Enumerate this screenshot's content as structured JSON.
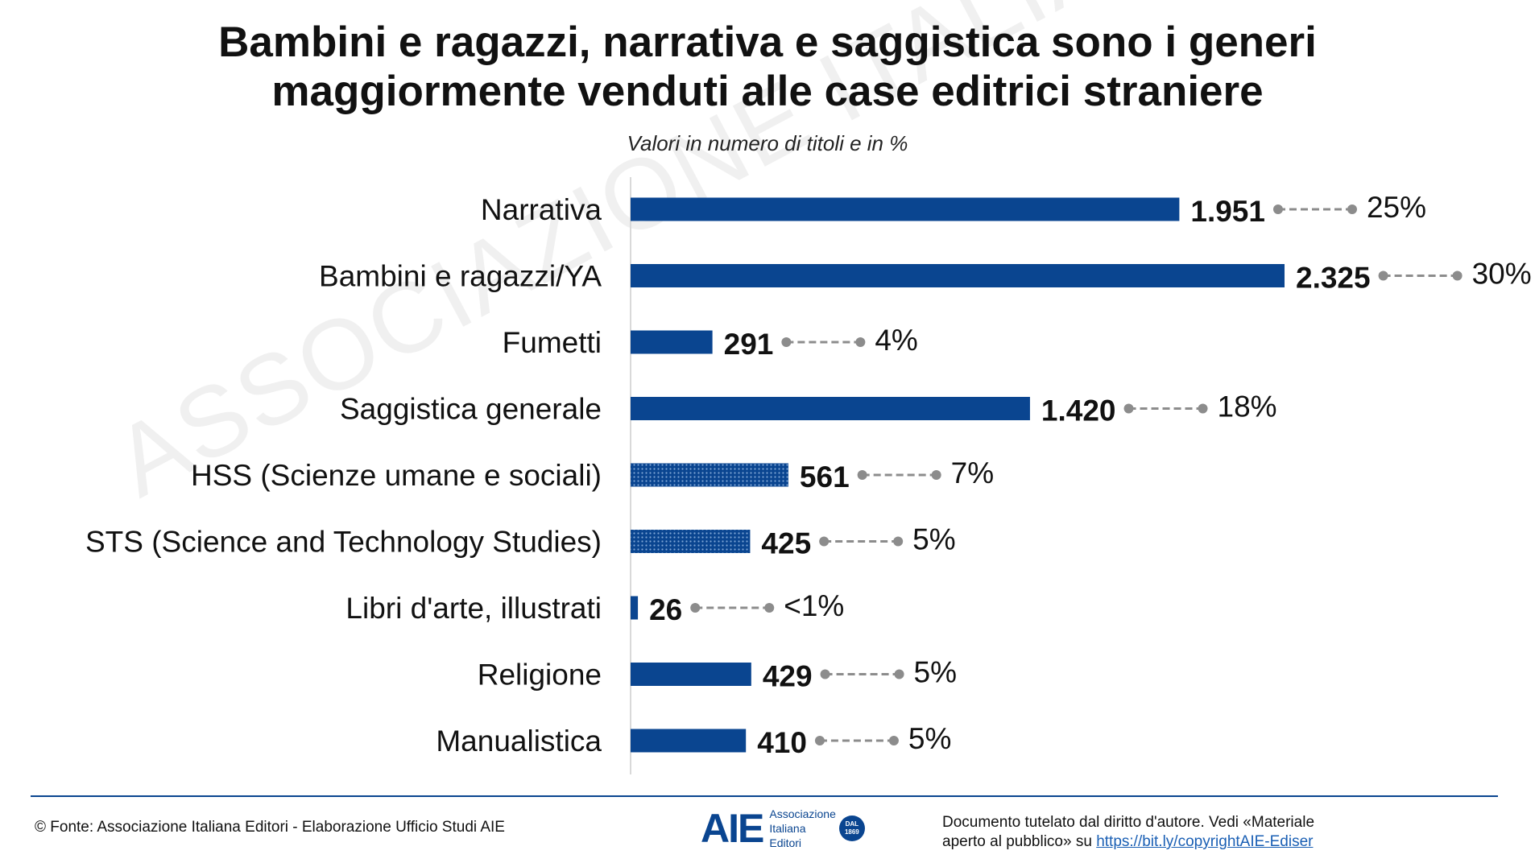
{
  "title_line1": "Bambini e ragazzi, narrativa e saggistica sono i generi",
  "title_line2": "maggiormente venduti alle case editrici straniere",
  "subtitle": "Valori in numero di titoli e in %",
  "watermark": "ASSOCIAZIONE ITALIANA EDITORI",
  "colors": {
    "bar": "#0a4590",
    "connector": "#8c8c8c"
  },
  "chart_data": {
    "type": "bar",
    "orientation": "horizontal",
    "categories": [
      "Narrativa",
      "Bambini e ragazzi/YA",
      "Fumetti",
      "Saggistica generale",
      "HSS (Scienze umane e sociali)",
      "STS (Science and Technology Studies)",
      "Libri d'arte, illustrati",
      "Religione",
      "Manualistica"
    ],
    "values": [
      1951,
      2325,
      291,
      1420,
      561,
      425,
      26,
      429,
      410
    ],
    "value_labels": [
      "1.951",
      "2.325",
      "291",
      "1.420",
      "561",
      "425",
      "26",
      "429",
      "410"
    ],
    "percent_labels": [
      "25%",
      "30%",
      "4%",
      "18%",
      "7%",
      "5%",
      "<1%",
      "5%",
      "5%"
    ],
    "patterned": [
      false,
      false,
      false,
      false,
      true,
      true,
      false,
      false,
      false
    ],
    "xlim": [
      0,
      2325
    ],
    "grid": false,
    "title": "Bambini e ragazzi, narrativa e saggistica sono i generi maggiormente venduti alle case editrici straniere",
    "subtitle": "Valori in numero di titoli e in %"
  },
  "footer": {
    "source": "© Fonte: Associazione Italiana Editori - Elaborazione Ufficio Studi AIE",
    "logo_mark": "AIE",
    "logo_line1": "Associazione",
    "logo_line2": "Italiana",
    "logo_line3": "Editori",
    "logo_seal_line1": "DAL",
    "logo_seal_line2": "1869",
    "copyright_line1": "Documento tutelato dal diritto d'autore. Vedi «Materiale",
    "copyright_line2_prefix": "aperto al pubblico» su",
    "copyright_link": "https://bit.ly/copyrightAIE-Ediser"
  }
}
